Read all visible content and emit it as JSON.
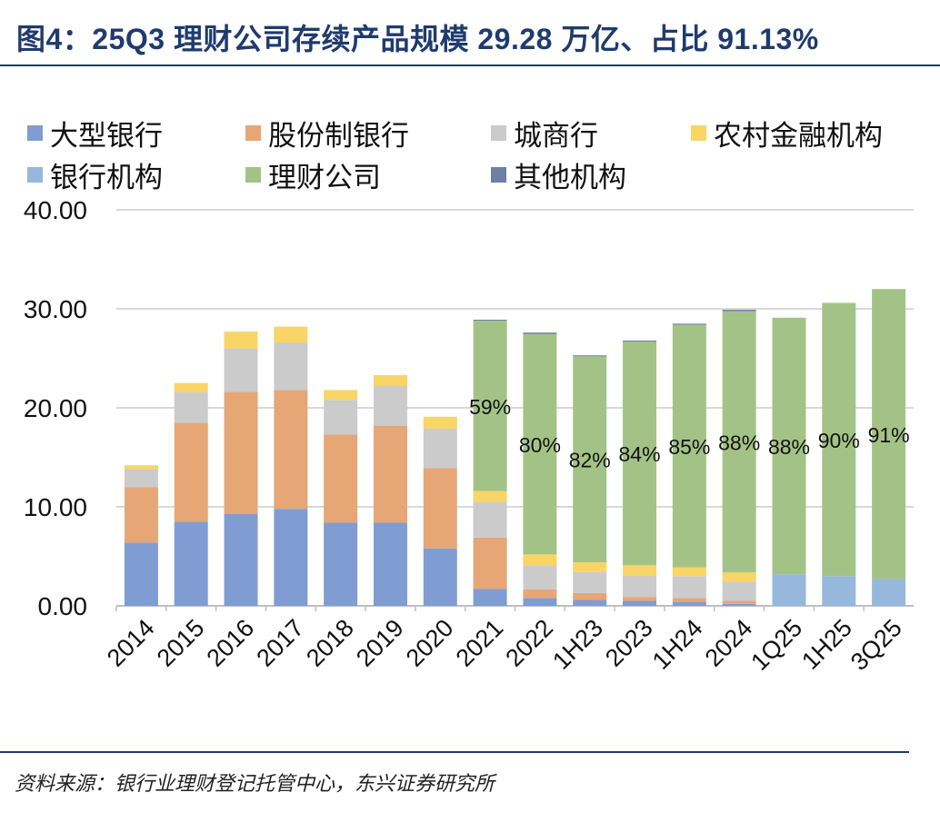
{
  "chart_data": {
    "type": "bar",
    "stacked": true,
    "title": "图4：25Q3 理财公司存续产品规模 29.28 万亿、占比 91.13%",
    "xlabel": "",
    "ylabel": "",
    "ylim": [
      0,
      40
    ],
    "yticks": [
      "0.00",
      "10.00",
      "20.00",
      "30.00",
      "40.00"
    ],
    "grid": true,
    "legend_position": "top",
    "categories": [
      "2014",
      "2015",
      "2016",
      "2017",
      "2018",
      "2019",
      "2020",
      "2021",
      "2022",
      "1H23",
      "2023",
      "1H24",
      "2024",
      "1Q25",
      "1H25",
      "3Q25"
    ],
    "series": [
      {
        "name": "大型银行",
        "color": "#7F9DD3",
        "values": [
          6.4,
          8.5,
          9.3,
          9.8,
          8.4,
          8.4,
          5.8,
          1.7,
          0.8,
          0.6,
          0.5,
          0.4,
          0.2,
          0,
          0,
          0
        ]
      },
      {
        "name": "股份制银行",
        "color": "#E6A676",
        "values": [
          5.6,
          10.0,
          12.3,
          12.0,
          8.9,
          9.8,
          8.1,
          5.2,
          0.85,
          0.7,
          0.4,
          0.4,
          0.3,
          0,
          0,
          0
        ]
      },
      {
        "name": "城商行",
        "color": "#CBCBCB",
        "values": [
          1.8,
          3.1,
          4.4,
          4.8,
          3.5,
          4.0,
          4.0,
          3.6,
          2.45,
          2.1,
          2.2,
          2.2,
          1.95,
          0,
          0,
          0
        ]
      },
      {
        "name": "农村金融机构",
        "color": "#F8D565",
        "values": [
          0.4,
          0.9,
          1.7,
          1.6,
          1.0,
          1.1,
          1.2,
          1.1,
          1.1,
          1.0,
          1.0,
          0.9,
          0.95,
          0,
          0,
          0
        ]
      },
      {
        "name": "银行机构",
        "color": "#96B8DC",
        "values": [
          0,
          0,
          0,
          0,
          0,
          0,
          0,
          0,
          0,
          0,
          0,
          0,
          0,
          3.2,
          3.0,
          2.7
        ]
      },
      {
        "name": "理财公司",
        "color": "#A3C386",
        "values": [
          0,
          0,
          0,
          0,
          0,
          0,
          0,
          17.2,
          22.25,
          20.8,
          22.6,
          24.5,
          26.35,
          25.9,
          27.6,
          29.3
        ]
      },
      {
        "name": "其他机构",
        "color": "#6E7FA6",
        "values": [
          0,
          0,
          0,
          0,
          0,
          0,
          0,
          0.1,
          0.15,
          0.1,
          0.1,
          0.1,
          0.15,
          0,
          0,
          0
        ]
      }
    ],
    "annotations": [
      "",
      "",
      "",
      "",
      "",
      "",
      "",
      "59%",
      "80%",
      "82%",
      "84%",
      "85%",
      "88%",
      "88%",
      "90%",
      "91%"
    ]
  },
  "source": "资料来源：银行业理财登记托管中心，东兴证券研究所"
}
